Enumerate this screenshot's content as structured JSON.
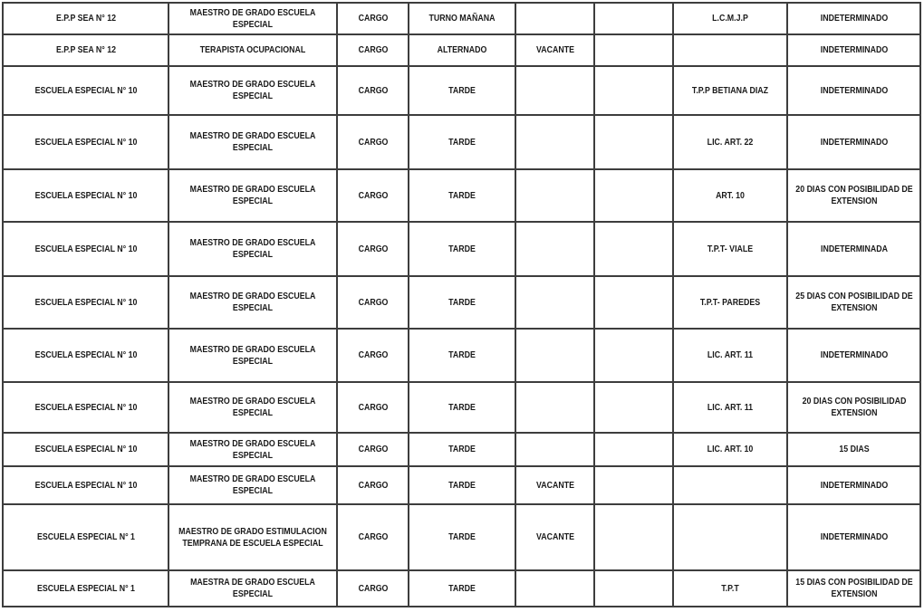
{
  "colors": {
    "background": "#ffffff",
    "border": "#3d3d3d",
    "text": "#1a1a1a"
  },
  "table": {
    "columns": [
      {
        "key": "school"
      },
      {
        "key": "position"
      },
      {
        "key": "role"
      },
      {
        "key": "shift"
      },
      {
        "key": "vacancy"
      },
      {
        "key": "note"
      },
      {
        "key": "license"
      },
      {
        "key": "duration"
      }
    ],
    "rows": [
      {
        "school": "E.P.P SEA N° 12",
        "position": "MAESTRO DE GRADO ESCUELA\nESPECIAL",
        "role": "CARGO",
        "shift": "TURNO MAÑANA",
        "vacancy": "",
        "note": "",
        "license": "L.C.M.J.P",
        "duration": "INDETERMINADO"
      },
      {
        "school": "E.P.P SEA N° 12",
        "position": "TERAPISTA OCUPACIONAL",
        "role": "CARGO",
        "shift": "ALTERNADO",
        "vacancy": "VACANTE",
        "note": "",
        "license": "",
        "duration": "INDETERMINADO"
      },
      {
        "school": "ESCUELA ESPECIAL N° 10",
        "position": "MAESTRO DE GRADO ESCUELA\nESPECIAL",
        "role": "CARGO",
        "shift": "TARDE",
        "vacancy": "",
        "note": "",
        "license": "T.P.P BETIANA DIAZ",
        "duration": "INDETERMINADO"
      },
      {
        "school": "ESCUELA ESPECIAL N° 10",
        "position": "MAESTRO DE GRADO ESCUELA\nESPECIAL",
        "role": "CARGO",
        "shift": "TARDE",
        "vacancy": "",
        "note": "",
        "license": "LIC. ART. 22",
        "duration": "INDETERMINADO"
      },
      {
        "school": "ESCUELA ESPECIAL N° 10",
        "position": "MAESTRO DE GRADO ESCUELA\nESPECIAL",
        "role": "CARGO",
        "shift": "TARDE",
        "vacancy": "",
        "note": "",
        "license": "ART. 10",
        "duration": "20 DIAS CON POSIBILIDAD DE\nEXTENSION"
      },
      {
        "school": "ESCUELA ESPECIAL N° 10",
        "position": "MAESTRO DE GRADO ESCUELA\nESPECIAL",
        "role": "CARGO",
        "shift": "TARDE",
        "vacancy": "",
        "note": "",
        "license": "T.P.T- VIALE",
        "duration": "INDETERMINADA"
      },
      {
        "school": "ESCUELA ESPECIAL N° 10",
        "position": "MAESTRO DE GRADO ESCUELA\nESPECIAL",
        "role": "CARGO",
        "shift": "TARDE",
        "vacancy": "",
        "note": "",
        "license": "T.P.T- PAREDES",
        "duration": "25 DIAS CON POSIBILIDAD DE\nEXTENSION"
      },
      {
        "school": "ESCUELA ESPECIAL N° 10",
        "position": "MAESTRO DE GRADO ESCUELA\nESPECIAL",
        "role": "CARGO",
        "shift": "TARDE",
        "vacancy": "",
        "note": "",
        "license": "LIC. ART. 11",
        "duration": "INDETERMINADO"
      },
      {
        "school": "ESCUELA ESPECIAL N° 10",
        "position": "MAESTRO DE GRADO ESCUELA\nESPECIAL",
        "role": "CARGO",
        "shift": "TARDE",
        "vacancy": "",
        "note": "",
        "license": "LIC. ART. 11",
        "duration": "20 DIAS CON POSIBILIDAD\nEXTENSION"
      },
      {
        "school": "ESCUELA ESPECIAL N° 10",
        "position": "MAESTRO DE GRADO ESCUELA\nESPECIAL",
        "role": "CARGO",
        "shift": "TARDE",
        "vacancy": "",
        "note": "",
        "license": "LIC. ART. 10",
        "duration": "15 DIAS"
      },
      {
        "school": "ESCUELA ESPECIAL N° 10",
        "position": "MAESTRO DE GRADO ESCUELA\nESPECIAL",
        "role": "CARGO",
        "shift": "TARDE",
        "vacancy": "VACANTE",
        "note": "",
        "license": "",
        "duration": "INDETERMINADO"
      },
      {
        "school": "ESCUELA ESPECIAL N° 1",
        "position": "MAESTRO DE GRADO ESTIMULACION\nTEMPRANA DE ESCUELA ESPECIAL",
        "role": "CARGO",
        "shift": "TARDE",
        "vacancy": "VACANTE",
        "note": "",
        "license": "",
        "duration": "INDETERMINADO"
      },
      {
        "school": "ESCUELA ESPECIAL N° 1",
        "position": "MAESTRA DE GRADO ESCUELA\nESPECIAL",
        "role": "CARGO",
        "shift": "TARDE",
        "vacancy": "",
        "note": "",
        "license": "T.P.T",
        "duration": "15 DIAS CON POSIBILIDAD DE\nEXTENSION"
      }
    ]
  }
}
